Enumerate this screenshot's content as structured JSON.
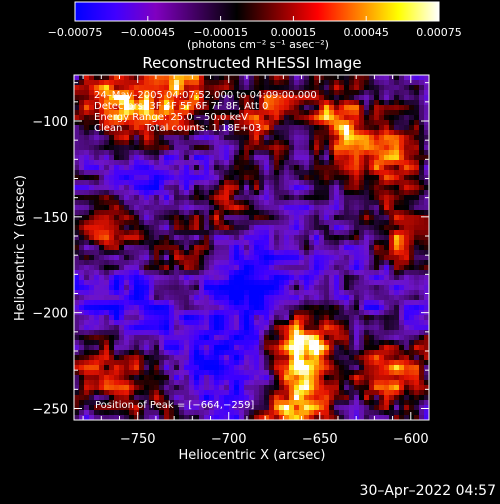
{
  "chart_data": {
    "type": "heatmap",
    "title": "Reconstructed RHESSI Image",
    "xlabel": "Heliocentric X (arcsec)",
    "ylabel": "Heliocentric Y (arcsec)",
    "xlim": [
      -785,
      -590
    ],
    "ylim": [
      -256,
      -76
    ],
    "xticks": [
      -750,
      -700,
      -650,
      -600
    ],
    "xtick_labels": [
      "−750",
      "−700",
      "−650",
      "−600"
    ],
    "yticks": [
      -100,
      -150,
      -200,
      -250
    ],
    "ytick_labels": [
      "−100",
      "−150",
      "−200",
      "−250"
    ],
    "colorbar": {
      "range": [
        -0.00075,
        0.00075
      ],
      "ticks": [
        -0.00075,
        -0.00045,
        -0.00015,
        0.00015,
        0.00045,
        0.00075
      ],
      "tick_labels": [
        "−0.00075",
        "−0.00045",
        "−0.00015",
        "0.00015",
        "0.00045",
        "0.00075"
      ],
      "units_label": "(photons cm⁻² s⁻¹ asec⁻²)",
      "colors": [
        "#0000ff",
        "#4000ff",
        "#8000c0",
        "#400060",
        "#000000",
        "#800000",
        "#ff0000",
        "#ff8000",
        "#ffff00",
        "#ffffff"
      ]
    },
    "annotations": {
      "time_range": "24–May–2005 04:07:52.000 to 04:09:00.000",
      "detectors": "Detectors: 3F 4F 5F 6F 7F 8F, Att 0",
      "energy_range": "Energy Range: 25.0 – 50.0 keV",
      "clean": "Clean",
      "total_counts": "Total counts: 1.18E+03",
      "peak_position": "Position of Peak = [−664,−259]"
    },
    "features": {
      "peak": [
        -664,
        -259
      ],
      "bright_regions": [
        {
          "x": -765,
          "y": -90,
          "strength": 0.85
        },
        {
          "x": -740,
          "y": -100,
          "strength": 0.7
        },
        {
          "x": -725,
          "y": -80,
          "strength": 0.75
        },
        {
          "x": -680,
          "y": -95,
          "strength": 0.6
        },
        {
          "x": -640,
          "y": -100,
          "strength": 0.8
        },
        {
          "x": -615,
          "y": -120,
          "strength": 0.75
        },
        {
          "x": -605,
          "y": -160,
          "strength": 0.65
        },
        {
          "x": -700,
          "y": -145,
          "strength": 0.5
        },
        {
          "x": -765,
          "y": -160,
          "strength": 0.55
        },
        {
          "x": -725,
          "y": -170,
          "strength": 0.45
        },
        {
          "x": -770,
          "y": -230,
          "strength": 0.5
        },
        {
          "x": -745,
          "y": -240,
          "strength": 0.45
        },
        {
          "x": -665,
          "y": -215,
          "strength": 0.75
        },
        {
          "x": -655,
          "y": -225,
          "strength": 0.65
        },
        {
          "x": -635,
          "y": -200,
          "strength": 0.4
        },
        {
          "x": -610,
          "y": -230,
          "strength": 0.85
        },
        {
          "x": -665,
          "y": -255,
          "strength": 0.95
        }
      ],
      "dark_regions": [
        {
          "x": -740,
          "y": -120,
          "strength": 0.55
        },
        {
          "x": -700,
          "y": -175,
          "strength": 0.6
        },
        {
          "x": -760,
          "y": -190,
          "strength": 0.55
        },
        {
          "x": -680,
          "y": -200,
          "strength": 0.5
        },
        {
          "x": -625,
          "y": -195,
          "strength": 0.6
        },
        {
          "x": -720,
          "y": -220,
          "strength": 0.5
        },
        {
          "x": -690,
          "y": -235,
          "strength": 0.45
        }
      ]
    }
  },
  "footer": {
    "timestamp": "30–Apr–2022 04:57"
  }
}
